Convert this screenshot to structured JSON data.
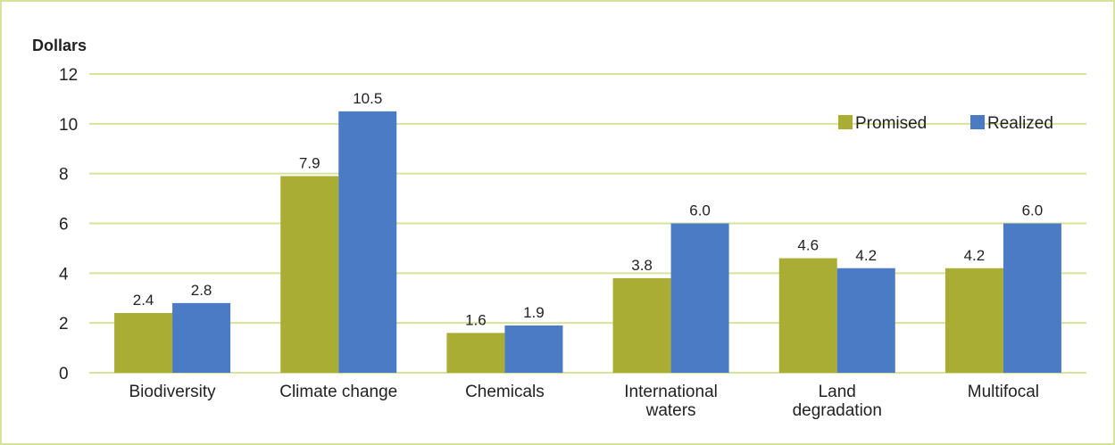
{
  "chart_data": {
    "type": "bar",
    "ylabel": "Dollars",
    "ylim": [
      0,
      12
    ],
    "yticks": [
      0,
      2,
      4,
      6,
      8,
      10,
      12
    ],
    "grid": true,
    "legend_position": "top-right",
    "categories": [
      [
        "Biodiversity"
      ],
      [
        "Climate change"
      ],
      [
        "Chemicals"
      ],
      [
        "International",
        "waters"
      ],
      [
        "Land",
        "degradation"
      ],
      [
        "Multifocal"
      ]
    ],
    "series": [
      {
        "name": "Promised",
        "color": "#a9ad34",
        "values": [
          2.4,
          7.9,
          1.6,
          3.8,
          4.6,
          4.2
        ],
        "labels": [
          "2.4",
          "7.9",
          "1.6",
          "3.8",
          "4.6",
          "4.2"
        ]
      },
      {
        "name": "Realized",
        "color": "#4a7bc4",
        "values": [
          2.8,
          10.5,
          1.9,
          6.0,
          4.2,
          6.0
        ],
        "labels": [
          "2.8",
          "10.5",
          "1.9",
          "6.0",
          "4.2",
          "6.0"
        ]
      }
    ],
    "colors": {
      "grid": "#d6e39a",
      "frame": "#d6e39a"
    }
  }
}
